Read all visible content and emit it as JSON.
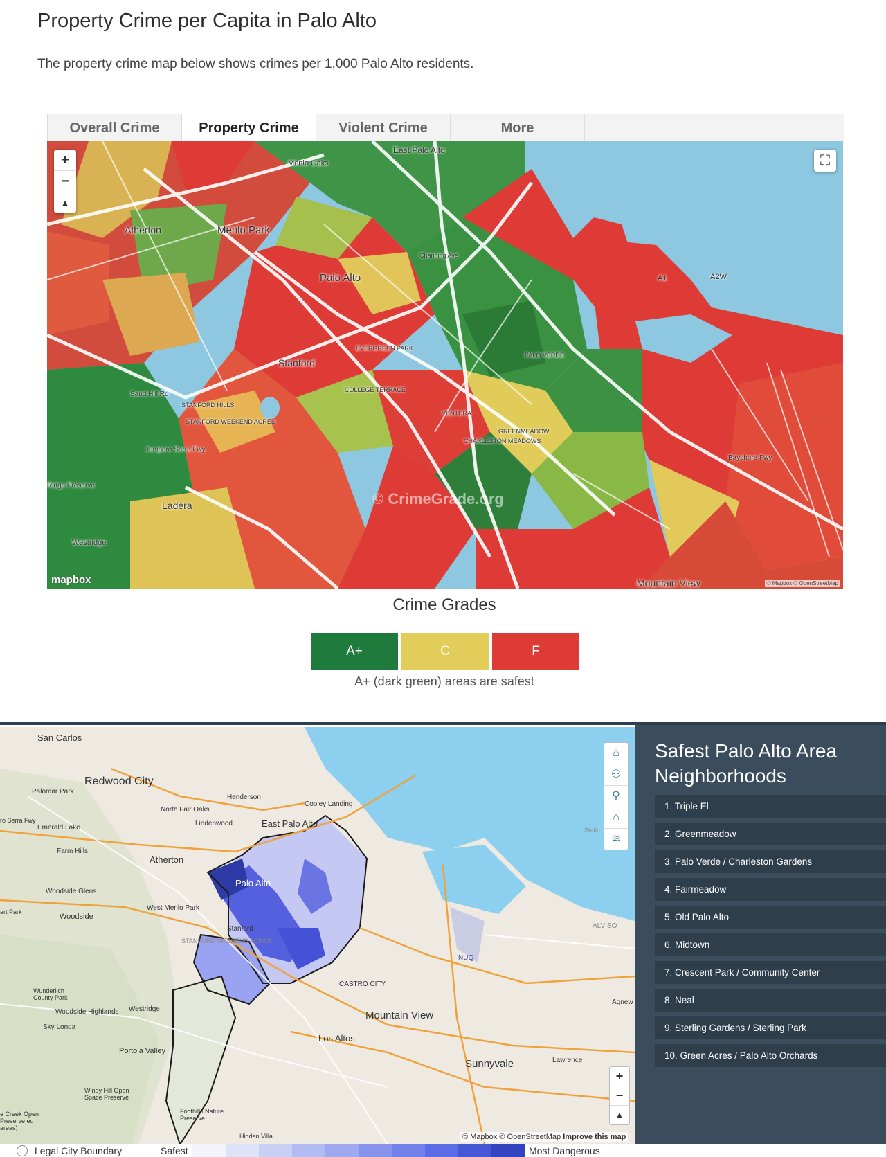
{
  "header": {
    "title": "Property Crime per Capita in Palo Alto",
    "intro": "The property crime map below shows crimes per 1,000 Palo Alto residents."
  },
  "tabs": [
    {
      "label": "Overall Crime"
    },
    {
      "label": "Property Crime"
    },
    {
      "label": "Violent Crime"
    },
    {
      "label": "More"
    }
  ],
  "map1": {
    "zoom_in": "+",
    "zoom_out": "−",
    "compass": "▲",
    "fullscreen_icon": "⛶",
    "logo": "mapbox",
    "attribution": "© Mapbox © OpenStreetMap",
    "watermark": "© CrimeGrade.org",
    "labels": {
      "atherton": "Atherton",
      "menlo_park": "Menlo Park",
      "palo_alto": "Palo Alto",
      "stanford": "Stanford",
      "east_palo_alto": "East Palo Alto",
      "menlo_oaks": "Menlo Oaks",
      "ladera": "Ladera",
      "westridge": "Westridge",
      "mountain_view": "Mountain View",
      "sand_hill_rd": "Sand Hill Rd",
      "bayshore_fwy": "Bayshore Fwy",
      "junipero_serra": "Junipero Serra Fwy",
      "stanford_hills": "STANFORD HILLS",
      "stanford_weekend_acres": "STANFORD WEEKEND ACRES",
      "evergreen_park": "EVERGREEN PARK",
      "college_terrace": "COLLEGE TERRACE",
      "ventura": "VENTURA",
      "charleston_meadows": "CHARLESTON MEADOWS",
      "palo_verde": "PALO VERDE",
      "greenmeadow": "GREENMEADOW",
      "channing_ave": "Channing Ave",
      "a1": "A1",
      "a2w": "A2W",
      "ridge_preserve": "Ridge Preserve"
    }
  },
  "crime_grades": {
    "title": "Crime Grades",
    "items": [
      {
        "label": "A+",
        "color": "#1e7b3c"
      },
      {
        "label": "C",
        "color": "#e3cd5a"
      },
      {
        "label": "F",
        "color": "#de3b36"
      }
    ],
    "note": "A+ (dark green) areas are safest"
  },
  "map2": {
    "labels": {
      "san_carlos": "San Carlos",
      "redwood_city": "Redwood City",
      "palomar_park": "Palomar Park",
      "emerald_lake": "Emerald Lake",
      "farm_hills": "Farm Hills",
      "north_fair_oaks": "North Fair Oaks",
      "lindenwood": "Lindenwood",
      "henderson": "Henderson",
      "cooley_landing": "Cooley Landing",
      "east_palo_alto": "East Palo Alto",
      "atherton": "Atherton",
      "woodside_glens": "Woodside Glens",
      "woodside": "Woodside",
      "west_menlo_park": "West Menlo Park",
      "stanford": "Stanford",
      "palo_alto": "Palo Alto",
      "wunderlich": "Wunderlich County Park",
      "woodside_highlands": "Woodside Highlands",
      "westridge": "Westridge",
      "sky_londa": "Sky Londa",
      "portola_valley": "Portola Valley",
      "windy_hill": "Windy Hill Open Space Preserve",
      "foothills": "Foothills Nature Preserve",
      "hidden_villa": "Hidden Villa",
      "los_altos": "Los Altos",
      "castro_city": "CASTRO CITY",
      "mountain_view": "Mountain View",
      "sunnyvale": "Sunnyvale",
      "nuq": "NUQ",
      "alviso": "ALVISO",
      "agnew": "Agnew",
      "lawrence": "Lawrence",
      "stanford_weekend_acres": "STANFORD WEEKEND ACRES",
      "creek_open": "a Creek Open Preserve ed areas)",
      "serra_fwy": "ro Serra Fwy",
      "art_park": "art Park",
      "station": "Static"
    },
    "tools": [
      "⌂",
      "⚇",
      "⚲",
      "⌂",
      "≋"
    ],
    "zoom_in": "+",
    "zoom_out": "−",
    "compass": "▲",
    "attribution_prefix": "© Mapbox © OpenStreetMap",
    "attribution_link": "Improve this map"
  },
  "sidebar": {
    "title": "Safest Palo Alto Area Neighborhoods",
    "items": [
      "1. Triple El",
      "2. Greenmeadow",
      "3. Palo Verde / Charleston Gardens",
      "4. Fairmeadow",
      "5. Old Palo Alto",
      "6. Midtown",
      "7. Crescent Park / Community Center",
      "8. Neal",
      "9. Sterling Gardens / Sterling Park",
      "10. Green Acres / Palo Alto Orchards"
    ]
  },
  "bottom_legend": {
    "boundary": "Legal City Boundary",
    "safest": "Safest",
    "most_dangerous": "Most Dangerous",
    "colors": [
      "#f2f3fb",
      "#dfe3f8",
      "#c9d0f5",
      "#b3bcf2",
      "#9ea9ef",
      "#8894ec",
      "#7280e9",
      "#5c6ce6",
      "#4657d6",
      "#3443c0"
    ]
  }
}
